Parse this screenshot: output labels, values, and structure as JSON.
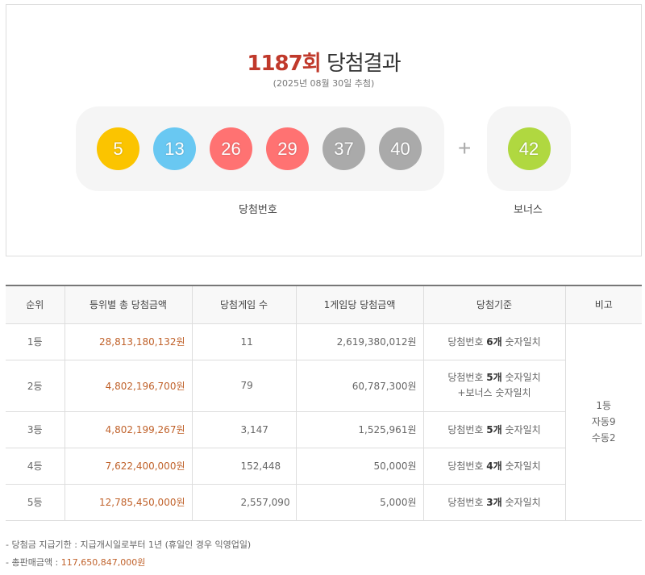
{
  "header": {
    "round": "1187회",
    "title_suffix": "당첨결과",
    "draw_date": "(2025년 08월 30일 추첨)"
  },
  "winning_numbers": [
    {
      "value": "5",
      "color": "#fbc400"
    },
    {
      "value": "13",
      "color": "#69c8f2"
    },
    {
      "value": "26",
      "color": "#ff7272"
    },
    {
      "value": "29",
      "color": "#ff7272"
    },
    {
      "value": "37",
      "color": "#aaaaaa"
    },
    {
      "value": "40",
      "color": "#aaaaaa"
    }
  ],
  "plus_symbol": "+",
  "bonus": {
    "value": "42",
    "color": "#b0d840"
  },
  "labels": {
    "winning_numbers": "당첨번호",
    "bonus": "보너스"
  },
  "table": {
    "headers": [
      "순위",
      "등위별 총 당첨금액",
      "당첨게임 수",
      "1게임당 당첨금액",
      "당첨기준",
      "비고"
    ],
    "rows": [
      {
        "rank": "1등",
        "total": "28,813,180,132원",
        "count": "11",
        "per_game": "2,619,380,012원",
        "crit_pre": "당첨번호 ",
        "crit_bold": "6개",
        "crit_post": " 숫자일치",
        "crit_line2": ""
      },
      {
        "rank": "2등",
        "total": "4,802,196,700원",
        "count": "79",
        "per_game": "60,787,300원",
        "crit_pre": "당첨번호 ",
        "crit_bold": "5개",
        "crit_post": " 숫자일치",
        "crit_line2": "+보너스 숫자일치"
      },
      {
        "rank": "3등",
        "total": "4,802,199,267원",
        "count": "3,147",
        "per_game": "1,525,961원",
        "crit_pre": "당첨번호 ",
        "crit_bold": "5개",
        "crit_post": " 숫자일치",
        "crit_line2": ""
      },
      {
        "rank": "4등",
        "total": "7,622,400,000원",
        "count": "152,448",
        "per_game": "50,000원",
        "crit_pre": "당첨번호 ",
        "crit_bold": "4개",
        "crit_post": " 숫자일치",
        "crit_line2": ""
      },
      {
        "rank": "5등",
        "total": "12,785,450,000원",
        "count": "2,557,090",
        "per_game": "5,000원",
        "crit_pre": "당첨번호 ",
        "crit_bold": "3개",
        "crit_post": " 숫자일치",
        "crit_line2": ""
      }
    ],
    "note": [
      "1등",
      "자동9",
      "수동2"
    ]
  },
  "footnotes": {
    "deadline": "-  당첨금 지급기한 : 지급개시일로부터 1년 (휴일인 경우 익영업일)",
    "sales_label": "-  총판매금액 : ",
    "sales_value": "117,650,847,000원"
  },
  "colors": {
    "accent": "#c0392b",
    "money": "#c0622b"
  }
}
